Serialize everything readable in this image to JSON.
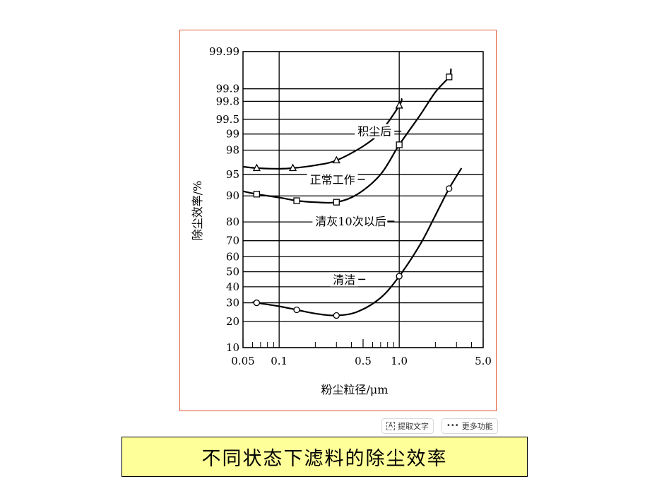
{
  "toolbar": {
    "ocr_label": "提取文字",
    "ocr_icon": "text-extract-icon",
    "more_label": "更多功能",
    "more_icon": "more-dots-icon"
  },
  "caption": "不同状态下滤料的除尘效率",
  "chart_data": {
    "type": "line",
    "title": "",
    "xlabel": "粉尘粒径/μm",
    "ylabel": "除尘效率/%",
    "x_scale": "log",
    "y_scale": "probability",
    "xlim": [
      0.05,
      5.0
    ],
    "ylim": [
      10,
      99.99
    ],
    "grid": true,
    "x_ticks": [
      {
        "value": 0.05,
        "label": "0.05"
      },
      {
        "value": 0.1,
        "label": "0.1"
      },
      {
        "value": 0.5,
        "label": "0.5"
      },
      {
        "value": 1.0,
        "label": "1.0"
      },
      {
        "value": 5.0,
        "label": "5.0"
      }
    ],
    "y_ticks": [
      {
        "value": 10,
        "label": "10"
      },
      {
        "value": 20,
        "label": "20"
      },
      {
        "value": 30,
        "label": "30"
      },
      {
        "value": 40,
        "label": "40"
      },
      {
        "value": 50,
        "label": "50"
      },
      {
        "value": 60,
        "label": "60"
      },
      {
        "value": 70,
        "label": "70"
      },
      {
        "value": 80,
        "label": "80"
      },
      {
        "value": 90,
        "label": "90"
      },
      {
        "value": 95,
        "label": "95"
      },
      {
        "value": 98,
        "label": "98"
      },
      {
        "value": 99,
        "label": "99"
      },
      {
        "value": 99.5,
        "label": "99.5"
      },
      {
        "value": 99.8,
        "label": "99.8"
      },
      {
        "value": 99.9,
        "label": "99.9"
      },
      {
        "value": 99.99,
        "label": "99.99"
      }
    ],
    "series": [
      {
        "name": "积尘后",
        "marker": "triangle",
        "points": [
          [
            0.065,
            96.0
          ],
          [
            0.13,
            96.0
          ],
          [
            0.3,
            97.0
          ],
          [
            1.0,
            99.75
          ]
        ],
        "curve": [
          [
            0.05,
            96.2
          ],
          [
            0.065,
            96.0
          ],
          [
            0.1,
            95.9
          ],
          [
            0.13,
            96.0
          ],
          [
            0.2,
            96.4
          ],
          [
            0.3,
            97.0
          ],
          [
            0.5,
            98.3
          ],
          [
            0.7,
            99.1
          ],
          [
            1.0,
            99.75
          ],
          [
            1.05,
            99.83
          ]
        ],
        "label_at": [
          0.45,
          99.0
        ]
      },
      {
        "name": "正常工作",
        "marker": "square",
        "points": [
          [
            0.065,
            90.5
          ],
          [
            0.14,
            88.5
          ],
          [
            0.3,
            88.0
          ],
          [
            1.0,
            98.4
          ],
          [
            2.6,
            99.95
          ]
        ],
        "curve": [
          [
            0.05,
            91.3
          ],
          [
            0.065,
            90.5
          ],
          [
            0.1,
            89.5
          ],
          [
            0.14,
            88.5
          ],
          [
            0.2,
            88.0
          ],
          [
            0.3,
            88.0
          ],
          [
            0.45,
            90.5
          ],
          [
            0.7,
            95.0
          ],
          [
            1.0,
            98.4
          ],
          [
            1.5,
            99.6
          ],
          [
            2.0,
            99.88
          ],
          [
            2.6,
            99.95
          ],
          [
            2.7,
            99.97
          ]
        ],
        "label_at": [
          0.18,
          93.5
        ]
      },
      {
        "name": "清灰10次以后",
        "marker": "none",
        "points": [],
        "curve": [],
        "label_at": [
          0.2,
          79.0
        ]
      },
      {
        "name": "清洁",
        "marker": "circle",
        "points": [
          [
            0.065,
            30.0
          ],
          [
            0.14,
            26.0
          ],
          [
            0.3,
            23.0
          ],
          [
            1.0,
            47.0
          ],
          [
            2.6,
            92.0
          ]
        ],
        "curve": [
          [
            0.06,
            30.5
          ],
          [
            0.065,
            30.0
          ],
          [
            0.1,
            28.0
          ],
          [
            0.14,
            26.0
          ],
          [
            0.2,
            24.0
          ],
          [
            0.3,
            23.0
          ],
          [
            0.45,
            25.0
          ],
          [
            0.7,
            33.0
          ],
          [
            1.0,
            47.0
          ],
          [
            1.5,
            68.0
          ],
          [
            2.0,
            83.0
          ],
          [
            2.6,
            92.0
          ],
          [
            3.3,
            96.0
          ]
        ],
        "label_at": [
          0.28,
          43.0
        ]
      }
    ]
  }
}
